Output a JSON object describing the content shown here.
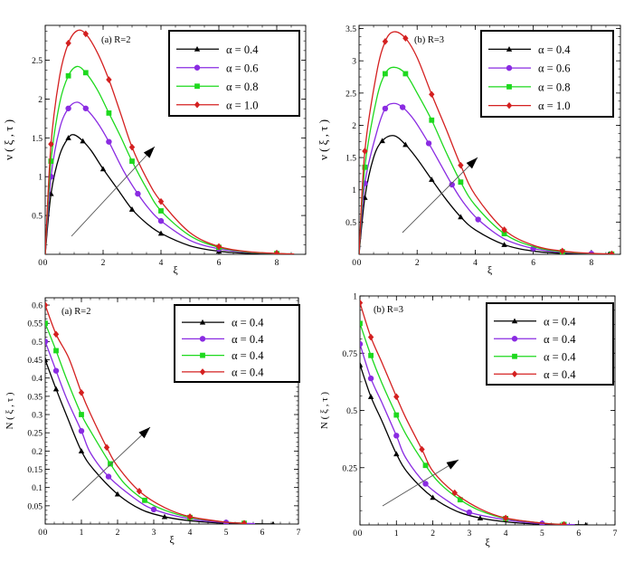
{
  "chart_data": [
    {
      "type": "line",
      "panel_label": "(a)  R=2",
      "xlabel": "ξ",
      "ylabel": "ν ( ξ , τ )",
      "xlim": [
        0,
        9
      ],
      "ylim": [
        0,
        2.95
      ],
      "xticks": [
        0,
        2,
        4,
        6,
        8
      ],
      "yticks": [
        0.5,
        1,
        1.5,
        2,
        2.5
      ],
      "ytick_labels": [
        "0.5",
        "1",
        "1.5",
        "2",
        "2.5"
      ],
      "legend_position": "top-right",
      "series": [
        {
          "name": "α = 0.4",
          "color": "#000000",
          "marker": "triangle",
          "x": [
            0,
            0.2,
            0.5,
            0.8,
            1.0,
            1.3,
            1.6,
            2.0,
            2.5,
            3.0,
            3.5,
            4.0,
            5.0,
            6.0,
            7.0,
            8.0,
            8.5
          ],
          "y": [
            0,
            0.78,
            1.28,
            1.5,
            1.54,
            1.46,
            1.33,
            1.1,
            0.84,
            0.58,
            0.4,
            0.27,
            0.11,
            0.04,
            0.012,
            0.003,
            0.001
          ]
        },
        {
          "name": "α = 0.6",
          "color": "#8a2be2",
          "marker": "circle",
          "x": [
            0,
            0.2,
            0.5,
            0.8,
            1.1,
            1.4,
            1.8,
            2.2,
            2.7,
            3.2,
            3.6,
            4.0,
            5.0,
            6.0,
            7.0,
            8.0,
            8.6
          ],
          "y": [
            0,
            1.0,
            1.62,
            1.88,
            1.96,
            1.88,
            1.7,
            1.45,
            1.08,
            0.78,
            0.58,
            0.43,
            0.18,
            0.07,
            0.025,
            0.008,
            0.003
          ]
        },
        {
          "name": "α = 0.8",
          "color": "#1ed91e",
          "marker": "square",
          "x": [
            0,
            0.2,
            0.5,
            0.8,
            1.1,
            1.4,
            1.8,
            2.2,
            2.6,
            3.0,
            3.5,
            4.0,
            5.0,
            6.0,
            7.0,
            8.0,
            8.6
          ],
          "y": [
            0,
            1.2,
            1.95,
            2.3,
            2.42,
            2.34,
            2.12,
            1.82,
            1.52,
            1.2,
            0.85,
            0.56,
            0.24,
            0.09,
            0.03,
            0.01,
            0.004
          ]
        },
        {
          "name": "α = 1.0",
          "color": "#d42020",
          "marker": "diamond",
          "x": [
            0,
            0.2,
            0.5,
            0.8,
            1.1,
            1.4,
            1.8,
            2.2,
            2.6,
            3.0,
            3.5,
            4.0,
            5.0,
            6.0,
            7.0,
            8.0,
            8.6
          ],
          "y": [
            0,
            1.42,
            2.3,
            2.72,
            2.88,
            2.84,
            2.6,
            2.25,
            1.82,
            1.38,
            0.98,
            0.68,
            0.28,
            0.1,
            0.035,
            0.012,
            0.004
          ]
        }
      ]
    },
    {
      "type": "line",
      "panel_label": "(b)  R=3",
      "xlabel": "ξ",
      "ylabel": "ν ( ξ , τ )",
      "xlim": [
        0,
        9
      ],
      "ylim": [
        0,
        3.55
      ],
      "xticks": [
        0,
        2,
        4,
        6,
        8
      ],
      "yticks": [
        0.5,
        1,
        1.5,
        2,
        2.5,
        3,
        3.5
      ],
      "ytick_labels": [
        "0.5",
        "1",
        "1.5",
        "2",
        "2.5",
        "3",
        "3.5"
      ],
      "legend_position": "top-right",
      "series": [
        {
          "name": "α = 0.4",
          "color": "#000000",
          "marker": "triangle",
          "x": [
            0,
            0.2,
            0.5,
            0.8,
            1.2,
            1.6,
            2.0,
            2.5,
            3.0,
            3.5,
            4.0,
            5.0,
            6.0,
            7.0,
            8.0,
            8.6
          ],
          "y": [
            0,
            0.88,
            1.5,
            1.76,
            1.84,
            1.7,
            1.48,
            1.16,
            0.85,
            0.58,
            0.38,
            0.15,
            0.05,
            0.015,
            0.004,
            0.002
          ]
        },
        {
          "name": "α = 0.6",
          "color": "#8a2be2",
          "marker": "circle",
          "x": [
            0,
            0.2,
            0.6,
            0.9,
            1.2,
            1.5,
            1.9,
            2.4,
            2.8,
            3.2,
            3.6,
            4.1,
            5.0,
            6.0,
            7.0,
            8.0,
            8.7
          ],
          "y": [
            0,
            1.1,
            1.88,
            2.26,
            2.34,
            2.28,
            2.08,
            1.72,
            1.4,
            1.08,
            0.8,
            0.54,
            0.24,
            0.09,
            0.03,
            0.01,
            0.003
          ]
        },
        {
          "name": "α = 0.8",
          "color": "#1ed91e",
          "marker": "square",
          "x": [
            0,
            0.2,
            0.6,
            0.9,
            1.2,
            1.6,
            2.0,
            2.5,
            3.0,
            3.5,
            4.0,
            5.0,
            6.0,
            7.0,
            8.0,
            8.7
          ],
          "y": [
            0,
            1.35,
            2.4,
            2.8,
            2.9,
            2.8,
            2.5,
            2.08,
            1.58,
            1.12,
            0.76,
            0.32,
            0.12,
            0.04,
            0.012,
            0.004
          ]
        },
        {
          "name": "α = 1.0",
          "color": "#d42020",
          "marker": "diamond",
          "x": [
            0,
            0.2,
            0.6,
            0.9,
            1.2,
            1.6,
            2.0,
            2.5,
            3.0,
            3.5,
            4.0,
            5.0,
            6.0,
            7.0,
            8.0,
            8.7
          ],
          "y": [
            0,
            1.6,
            2.8,
            3.3,
            3.45,
            3.35,
            3.05,
            2.48,
            1.94,
            1.38,
            0.92,
            0.38,
            0.14,
            0.05,
            0.015,
            0.005
          ]
        }
      ]
    },
    {
      "type": "line",
      "panel_label": "(a)   R=2",
      "xlabel": "ξ",
      "ylabel": "N ( ξ , τ )",
      "xlim": [
        0,
        7
      ],
      "ylim": [
        0,
        0.62
      ],
      "xticks": [
        0,
        1,
        2,
        3,
        4,
        5,
        6,
        7
      ],
      "yticks": [
        0.05,
        0.1,
        0.15,
        0.2,
        0.25,
        0.3,
        0.35,
        0.4,
        0.45,
        0.5,
        0.55,
        0.6
      ],
      "ytick_labels": [
        "0.05",
        "0.1",
        "0.15",
        "0.2",
        "0.25",
        "0.3",
        "0.35",
        "0.4",
        "0.45",
        "0.5",
        "0.55",
        "0.6"
      ],
      "legend_position": "top-right",
      "series": [
        {
          "name": "α = 0.4",
          "color": "#000000",
          "marker": "triangle",
          "x": [
            0,
            0.3,
            0.6,
            1.0,
            1.35,
            2.0,
            2.65,
            3.3,
            4.0,
            5.0,
            5.9,
            6.3
          ],
          "y": [
            0.45,
            0.37,
            0.295,
            0.2,
            0.148,
            0.082,
            0.04,
            0.02,
            0.009,
            0.002,
            0.0005,
            0.0002
          ]
        },
        {
          "name": "α = 0.4",
          "color": "#8a2be2",
          "marker": "circle",
          "x": [
            0,
            0.3,
            0.6,
            1.0,
            1.25,
            1.75,
            2.45,
            3.0,
            4.0,
            5.0,
            5.8
          ],
          "y": [
            0.5,
            0.42,
            0.342,
            0.255,
            0.195,
            0.13,
            0.072,
            0.04,
            0.014,
            0.004,
            0.001
          ]
        },
        {
          "name": "α = 0.4",
          "color": "#1ed91e",
          "marker": "square",
          "x": [
            0,
            0.3,
            0.6,
            1.0,
            1.25,
            1.8,
            2.2,
            2.75,
            3.3,
            4.0,
            5.0,
            5.5
          ],
          "y": [
            0.55,
            0.475,
            0.395,
            0.3,
            0.255,
            0.165,
            0.11,
            0.065,
            0.038,
            0.018,
            0.005,
            0.002
          ]
        },
        {
          "name": "α = 0.4",
          "color": "#d42020",
          "marker": "diamond",
          "x": [
            0,
            0.3,
            0.65,
            1.0,
            1.25,
            1.7,
            2.0,
            2.6,
            3.3,
            4.0,
            5.0,
            5.5
          ],
          "y": [
            0.6,
            0.52,
            0.455,
            0.36,
            0.302,
            0.21,
            0.158,
            0.09,
            0.045,
            0.02,
            0.005,
            0.002
          ]
        }
      ]
    },
    {
      "type": "line",
      "panel_label": "(b)    R=3",
      "xlabel": "ξ",
      "ylabel": "N ( ξ , τ )",
      "xlim": [
        0,
        7
      ],
      "ylim": [
        0,
        1.0
      ],
      "xticks": [
        0,
        1,
        2,
        3,
        4,
        5,
        6,
        7
      ],
      "yticks": [
        0.25,
        0.5,
        0.75,
        1
      ],
      "ytick_labels": [
        "0.25",
        "0.5",
        "0.75",
        "1"
      ],
      "legend_position": "top-right",
      "series": [
        {
          "name": "α = 0.4",
          "color": "#000000",
          "marker": "triangle",
          "x": [
            0,
            0.3,
            0.6,
            1.0,
            1.35,
            2.0,
            2.65,
            3.3,
            4.1,
            5.0,
            5.8,
            6.2
          ],
          "y": [
            0.7,
            0.56,
            0.455,
            0.31,
            0.22,
            0.12,
            0.06,
            0.03,
            0.012,
            0.003,
            0.001,
            0.0005
          ]
        },
        {
          "name": "α = 0.4",
          "color": "#8a2be2",
          "marker": "circle",
          "x": [
            0,
            0.3,
            0.6,
            1.0,
            1.25,
            1.8,
            2.45,
            3.0,
            4.1,
            5.0,
            5.9
          ],
          "y": [
            0.79,
            0.64,
            0.535,
            0.39,
            0.295,
            0.18,
            0.1,
            0.055,
            0.02,
            0.006,
            0.001
          ]
        },
        {
          "name": "α = 0.4",
          "color": "#1ed91e",
          "marker": "square",
          "x": [
            0,
            0.3,
            0.6,
            1.0,
            1.3,
            1.8,
            2.2,
            2.75,
            3.3,
            4.0,
            5.0,
            5.6
          ],
          "y": [
            0.88,
            0.74,
            0.62,
            0.48,
            0.385,
            0.26,
            0.18,
            0.11,
            0.062,
            0.028,
            0.008,
            0.002
          ]
        },
        {
          "name": "α = 0.4",
          "color": "#d42020",
          "marker": "diamond",
          "x": [
            0,
            0.3,
            0.6,
            1.0,
            1.25,
            1.7,
            2.0,
            2.6,
            3.3,
            4.0,
            5.0,
            5.6
          ],
          "y": [
            0.97,
            0.82,
            0.71,
            0.56,
            0.47,
            0.33,
            0.235,
            0.14,
            0.07,
            0.03,
            0.008,
            0.002
          ]
        }
      ]
    }
  ]
}
